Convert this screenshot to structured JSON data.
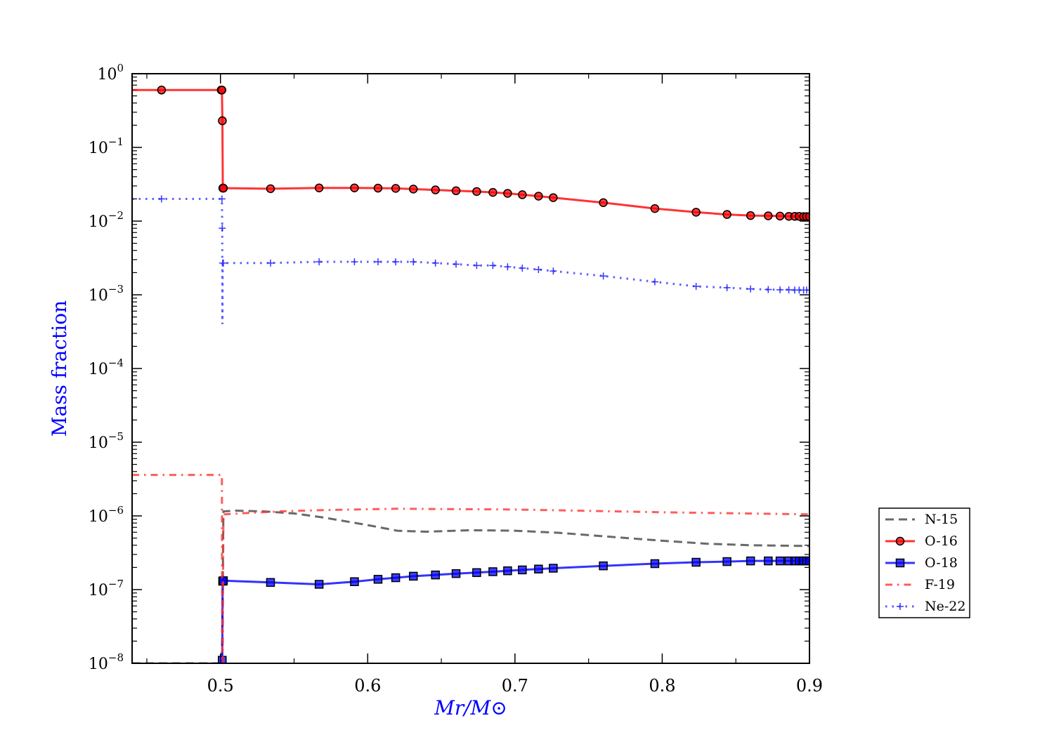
{
  "chart_data": {
    "type": "line",
    "title": "",
    "xlabel": "Mr/M⊙",
    "ylabel": "Mass fraction",
    "xscale": "linear",
    "yscale": "log",
    "xlim": [
      0.44,
      0.9
    ],
    "ylim": [
      1e-08,
      1
    ],
    "xticks": [
      0.5,
      0.6,
      0.7,
      0.8,
      0.9
    ],
    "xtick_labels": [
      "0.5",
      "0.6",
      "0.7",
      "0.8",
      "0.9"
    ],
    "ytick_labels": [
      {
        "base": "10",
        "exp": "0"
      },
      {
        "base": "10",
        "exp": "−1"
      },
      {
        "base": "10",
        "exp": "−2"
      },
      {
        "base": "10",
        "exp": "−3"
      },
      {
        "base": "10",
        "exp": "−4"
      },
      {
        "base": "10",
        "exp": "−5"
      },
      {
        "base": "10",
        "exp": "−6"
      },
      {
        "base": "10",
        "exp": "−7"
      },
      {
        "base": "10",
        "exp": "−8"
      }
    ],
    "grid": false,
    "legend_position": "right-lower outside",
    "series": [
      {
        "name": "N-15",
        "color": "#444444",
        "style": "dashed",
        "marker": "none",
        "x": [
          0.44,
          0.501,
          0.5015,
          0.502,
          0.51,
          0.53,
          0.55,
          0.57,
          0.6,
          0.62,
          0.64,
          0.67,
          0.7,
          0.73,
          0.76,
          0.8,
          0.83,
          0.86,
          0.9
        ],
        "y": [
          1e-08,
          1e-08,
          1e-07,
          1.15e-06,
          1.18e-06,
          1.15e-06,
          1.08e-06,
          9.5e-07,
          7.5e-07,
          6.3e-07,
          6.1e-07,
          6.4e-07,
          6.3e-07,
          5.9e-07,
          5.3e-07,
          4.6e-07,
          4.2e-07,
          4e-07,
          3.9e-07
        ]
      },
      {
        "name": "O-16",
        "color": "#ff0000",
        "style": "solid",
        "marker": "circle",
        "x": [
          0.44,
          0.46,
          0.5,
          0.5005,
          0.501,
          0.5013,
          0.5016,
          0.502,
          0.534,
          0.567,
          0.591,
          0.607,
          0.619,
          0.631,
          0.646,
          0.66,
          0.674,
          0.685,
          0.695,
          0.705,
          0.716,
          0.726,
          0.76,
          0.795,
          0.823,
          0.844,
          0.86,
          0.872,
          0.88,
          0.886,
          0.89,
          0.893,
          0.896,
          0.898,
          0.9
        ],
        "y": [
          0.6,
          0.6,
          0.6,
          0.6,
          0.6,
          0.23,
          0.028,
          0.028,
          0.0275,
          0.0282,
          0.0282,
          0.028,
          0.0278,
          0.0272,
          0.0265,
          0.0258,
          0.0252,
          0.0245,
          0.0238,
          0.0228,
          0.0218,
          0.0208,
          0.0178,
          0.0148,
          0.0132,
          0.0123,
          0.0119,
          0.0118,
          0.0117,
          0.0116,
          0.0116,
          0.0116,
          0.0115,
          0.0115,
          0.0115
        ],
        "marker_idx": [
          1,
          3,
          4,
          5,
          6,
          7,
          8,
          9,
          10,
          11,
          12,
          13,
          14,
          15,
          16,
          17,
          18,
          19,
          20,
          21,
          22,
          23,
          24,
          25,
          26,
          27,
          28,
          29,
          30,
          31,
          32,
          33,
          34
        ]
      },
      {
        "name": "O-18",
        "color": "#0000ff",
        "style": "solid",
        "marker": "square",
        "x": [
          0.501,
          0.5012,
          0.5015,
          0.502,
          0.534,
          0.567,
          0.591,
          0.607,
          0.619,
          0.631,
          0.646,
          0.66,
          0.674,
          0.685,
          0.695,
          0.705,
          0.716,
          0.726,
          0.76,
          0.795,
          0.823,
          0.844,
          0.86,
          0.872,
          0.88,
          0.886,
          0.89,
          0.893,
          0.896,
          0.898,
          0.9
        ],
        "y": [
          1e-08,
          1.1e-08,
          1.3e-07,
          1.32e-07,
          1.25e-07,
          1.18e-07,
          1.28e-07,
          1.38e-07,
          1.45e-07,
          1.52e-07,
          1.58e-07,
          1.65e-07,
          1.7e-07,
          1.75e-07,
          1.8e-07,
          1.85e-07,
          1.9e-07,
          1.95e-07,
          2.1e-07,
          2.25e-07,
          2.35e-07,
          2.4e-07,
          2.45e-07,
          2.45e-07,
          2.45e-07,
          2.45e-07,
          2.45e-07,
          2.45e-07,
          2.45e-07,
          2.45e-07,
          2.45e-07
        ],
        "marker_idx": [
          1,
          2,
          3,
          4,
          5,
          6,
          7,
          8,
          9,
          10,
          11,
          12,
          13,
          14,
          15,
          16,
          17,
          18,
          19,
          20,
          21,
          22,
          23,
          24,
          25,
          26,
          27,
          28,
          29,
          30
        ]
      },
      {
        "name": "F-19",
        "color": "#ff3333",
        "style": "dashdot",
        "marker": "none",
        "x": [
          0.44,
          0.5,
          0.501,
          0.5012,
          0.5015,
          0.502,
          0.52,
          0.54,
          0.57,
          0.62,
          0.7,
          0.8,
          0.9
        ],
        "y": [
          3.6e-06,
          3.6e-06,
          3.6e-06,
          1e-08,
          1e-08,
          1.05e-06,
          1.1e-06,
          1.15e-06,
          1.2e-06,
          1.25e-06,
          1.22e-06,
          1.12e-06,
          1.05e-06
        ]
      },
      {
        "name": "Ne-22",
        "color": "#3333ff",
        "style": "dotted",
        "marker": "plus",
        "x": [
          0.44,
          0.46,
          0.5,
          0.501,
          0.5012,
          0.5013,
          0.5015,
          0.502,
          0.534,
          0.567,
          0.591,
          0.607,
          0.619,
          0.631,
          0.646,
          0.66,
          0.674,
          0.685,
          0.695,
          0.705,
          0.716,
          0.726,
          0.76,
          0.795,
          0.823,
          0.844,
          0.86,
          0.872,
          0.88,
          0.886,
          0.89,
          0.893,
          0.896,
          0.898,
          0.9
        ],
        "y": [
          0.02,
          0.02,
          0.02,
          0.02,
          0.008,
          0.0004,
          0.0027,
          0.0027,
          0.0027,
          0.0028,
          0.0028,
          0.0028,
          0.0028,
          0.0028,
          0.0027,
          0.0026,
          0.0025,
          0.0025,
          0.0024,
          0.0023,
          0.0022,
          0.0021,
          0.0018,
          0.0015,
          0.0013,
          0.00125,
          0.0012,
          0.00118,
          0.00117,
          0.00117,
          0.00116,
          0.00116,
          0.00116,
          0.00116,
          0.00116
        ],
        "marker_idx": [
          1,
          3,
          4,
          6,
          7,
          8,
          9,
          10,
          11,
          12,
          13,
          14,
          15,
          16,
          17,
          18,
          19,
          20,
          21,
          22,
          23,
          24,
          25,
          26,
          27,
          28,
          29,
          30,
          31,
          32,
          33,
          34
        ]
      }
    ]
  }
}
